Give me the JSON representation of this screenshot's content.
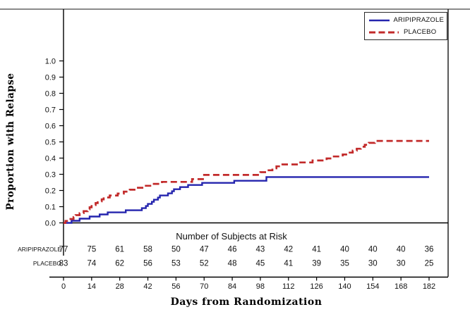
{
  "figure": {
    "ylabel": "Proportion with Relapse",
    "xlabel": "Days from Randomization"
  },
  "legend": {
    "position": "top-right",
    "items": [
      {
        "label": "ARIPIPRAZOLE",
        "color": "#2424AE",
        "style": "solid"
      },
      {
        "label": "PLACEBO",
        "color": "#C22A2A",
        "style": "dashed"
      }
    ]
  },
  "chart_data": {
    "type": "line",
    "subtype": "kaplan-meier-step",
    "title": "",
    "xlabel": "Days from Randomization",
    "ylabel": "Proportion with Relapse",
    "xlim": [
      0,
      182
    ],
    "ylim": [
      0.0,
      1.0
    ],
    "x_ticks": [
      0,
      14,
      28,
      42,
      56,
      70,
      84,
      98,
      112,
      126,
      140,
      154,
      168,
      182
    ],
    "y_ticks": [
      0.0,
      0.1,
      0.2,
      0.3,
      0.4,
      0.5,
      0.6,
      0.7,
      0.8,
      0.9,
      1.0
    ],
    "grid": false,
    "legend_position": "top-right",
    "series": [
      {
        "name": "ARIPIPRAZOLE",
        "color": "#2424AE",
        "line_style": "solid",
        "step_points": [
          [
            0,
            0
          ],
          [
            4,
            0.013
          ],
          [
            8,
            0.026
          ],
          [
            13,
            0.039
          ],
          [
            18,
            0.052
          ],
          [
            22,
            0.065
          ],
          [
            31,
            0.078
          ],
          [
            39,
            0.091
          ],
          [
            41,
            0.104
          ],
          [
            42,
            0.117
          ],
          [
            44,
            0.13
          ],
          [
            45,
            0.143
          ],
          [
            47,
            0.156
          ],
          [
            48,
            0.169
          ],
          [
            52,
            0.182
          ],
          [
            54,
            0.195
          ],
          [
            55,
            0.208
          ],
          [
            58,
            0.221
          ],
          [
            62,
            0.234
          ],
          [
            69,
            0.247
          ],
          [
            85,
            0.26
          ],
          [
            101,
            0.283
          ],
          [
            182,
            0.283
          ]
        ]
      },
      {
        "name": "PLACEBO",
        "color": "#C22A2A",
        "line_style": "dashed",
        "step_points": [
          [
            0,
            0
          ],
          [
            1,
            0.012
          ],
          [
            3,
            0.024
          ],
          [
            5,
            0.036
          ],
          [
            6,
            0.048
          ],
          [
            8,
            0.06
          ],
          [
            10,
            0.072
          ],
          [
            12,
            0.084
          ],
          [
            13,
            0.096
          ],
          [
            14,
            0.11
          ],
          [
            16,
            0.122
          ],
          [
            17,
            0.133
          ],
          [
            19,
            0.145
          ],
          [
            20,
            0.157
          ],
          [
            23,
            0.169
          ],
          [
            27,
            0.181
          ],
          [
            30,
            0.193
          ],
          [
            33,
            0.205
          ],
          [
            36,
            0.217
          ],
          [
            40,
            0.229
          ],
          [
            44,
            0.241
          ],
          [
            49,
            0.253
          ],
          [
            64,
            0.27
          ],
          [
            70,
            0.296
          ],
          [
            98,
            0.313
          ],
          [
            101,
            0.325
          ],
          [
            104,
            0.337
          ],
          [
            106,
            0.349
          ],
          [
            109,
            0.361
          ],
          [
            117,
            0.373
          ],
          [
            124,
            0.385
          ],
          [
            131,
            0.398
          ],
          [
            134,
            0.41
          ],
          [
            139,
            0.422
          ],
          [
            142,
            0.434
          ],
          [
            144,
            0.446
          ],
          [
            146,
            0.458
          ],
          [
            148,
            0.47
          ],
          [
            150,
            0.482
          ],
          [
            152,
            0.494
          ],
          [
            155,
            0.506
          ],
          [
            182,
            0.506
          ]
        ]
      }
    ],
    "risk_table": {
      "title": "Number of Subjects at Risk",
      "days": [
        0,
        14,
        28,
        42,
        56,
        70,
        84,
        98,
        112,
        126,
        140,
        154,
        168,
        182
      ],
      "rows": [
        {
          "label": "ARIPIPRAZOLE",
          "counts": [
            77,
            75,
            61,
            58,
            50,
            47,
            46,
            43,
            42,
            41,
            40,
            40,
            40,
            36
          ]
        },
        {
          "label": "PLACEBO",
          "counts": [
            83,
            74,
            62,
            56,
            53,
            52,
            48,
            45,
            41,
            39,
            35,
            30,
            30,
            25
          ]
        }
      ]
    }
  }
}
